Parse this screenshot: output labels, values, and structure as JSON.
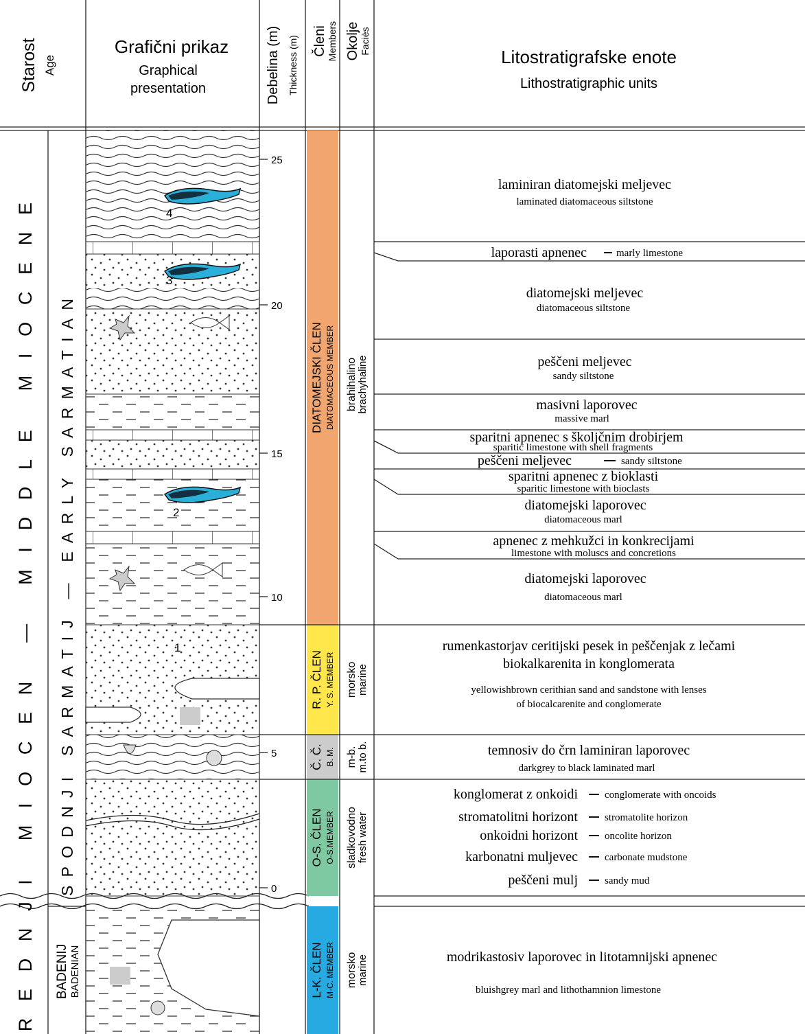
{
  "header": {
    "age": {
      "sl": "Starost",
      "en": "Age"
    },
    "graphic": {
      "sl": "Grafični prikaz",
      "en": [
        "Graphical",
        "presentation"
      ]
    },
    "thickness": {
      "sl": "Debelina (m)",
      "en": "Thickness (m)"
    },
    "members": {
      "sl": "Členi",
      "en": "Members"
    },
    "facies": {
      "sl": "Okolje",
      "en": "Faciès"
    },
    "units": {
      "sl": "Litostratigrafske enote",
      "en": "Lithostratigraphic units"
    }
  },
  "epoch": "SREDNJI MIOCEN — MIDDLE MIOCENE",
  "stages": {
    "sarmatian": "SPODNJI SARMATIJ — EARLY SARMATIAN",
    "badenian": {
      "sl": "BADENIJ",
      "en": "BADENIAN"
    }
  },
  "thickness_ticks": [
    "0",
    "5",
    "10",
    "15",
    "20",
    "25"
  ],
  "fossil_numbers": [
    "1",
    "2",
    "3",
    "4"
  ],
  "members": [
    {
      "sl": "DIATOMEJSKI ČLEN",
      "en": "DIATOMACEOUS MEMBER",
      "color": "#f2a66f"
    },
    {
      "sl": "R. P. ČLEN",
      "en": "Y. S. MEMBER",
      "color": "#ffe64b"
    },
    {
      "sl": "Č. Č.",
      "en": "B. M.",
      "color": "#cccccc"
    },
    {
      "sl": "O-S. ČLEN",
      "en": "O-S.MEMBER",
      "color": "#7fc9a2"
    },
    {
      "sl": "L-K. ČLEN",
      "en": "M-C. MEMBER",
      "color": "#27a9e1"
    }
  ],
  "facies": [
    {
      "sl": "brahihalino",
      "en": "brachyhaline"
    },
    {
      "sl": "morsko",
      "en": "marine"
    },
    {
      "sl": "m-b.",
      "en": "m.to b."
    },
    {
      "sl": "sladkovodno",
      "en": "fresh water"
    },
    {
      "sl": "morsko",
      "en": "marine"
    }
  ],
  "units": [
    {
      "sl": "laminiran diatomejski meljevec",
      "en": "laminated diatomaceous siltstone"
    },
    {
      "sl": "laporasti apnenec",
      "en": "marly limestone"
    },
    {
      "sl": "diatomejski meljevec",
      "en": "diatomaceous siltstone"
    },
    {
      "sl": "peščeni meljevec",
      "en": "sandy siltstone"
    },
    {
      "sl": "masivni laporovec",
      "en": "massive marl"
    },
    {
      "sl": "sparitni apnenec s školjčnim drobirjem",
      "en": "sparitic limestone with shell fragments"
    },
    {
      "sl": "peščeni meljevec",
      "en": "sandy siltstone"
    },
    {
      "sl": "sparitni apnenec z bioklasti",
      "en": "sparitic limestone with bioclasts"
    },
    {
      "sl": "diatomejski laporovec",
      "en": "diatomaceous marl"
    },
    {
      "sl": "apnenec z mehkužci in konkrecijami",
      "en": "limestone with moluscs and concretions"
    },
    {
      "sl": "diatomejski laporovec",
      "en": "diatomaceous marl"
    },
    {
      "sl": [
        "rumenkastorjav ceritijski pesek in peščenjak z lečami",
        "biokalkarenita in konglomerata"
      ],
      "en": [
        "yellowishbrown cerithian sand and sandstone with lenses",
        "of biocalcarenite and conglomerate"
      ]
    },
    {
      "sl": "temnosiv do črn laminiran laporovec",
      "en": "darkgrey to black laminated marl"
    },
    {
      "sl": "konglomerat z onkoidi",
      "en": "conglomerate with oncoids"
    },
    {
      "sl": "stromatolitni horizont",
      "en": "stromatolite horizon"
    },
    {
      "sl": "onkoidni horizont",
      "en": "oncolite horizon"
    },
    {
      "sl": "karbonatni muljevec",
      "en": "carbonate mudstone"
    },
    {
      "sl": "peščeni mulj",
      "en": "sandy mud"
    },
    {
      "sl": "modrikastosiv laporovec in litotamnijski apnenec",
      "en": "bluishgrey marl and lithothamnion limestone"
    }
  ]
}
